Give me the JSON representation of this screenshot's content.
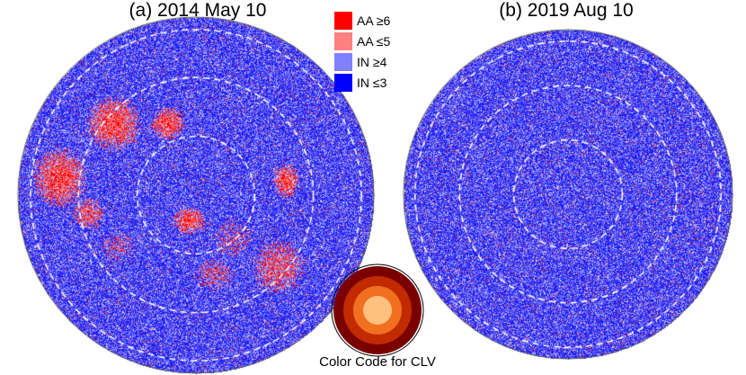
{
  "panels": [
    {
      "title": "(a) 2014 May 10",
      "activity": "high"
    },
    {
      "title": "(b) 2019 Aug 10",
      "activity": "low"
    }
  ],
  "legend": [
    {
      "label": "AA ≥6",
      "color": "#ff0000"
    },
    {
      "label": "AA ≤5",
      "color": "#ff8080"
    },
    {
      "label": "IN ≥4",
      "color": "#8080ff"
    },
    {
      "label": "IN ≤3",
      "color": "#0000ff"
    }
  ],
  "clv": {
    "caption": "Color Code for CLV",
    "ring_colors": [
      "#7a0000",
      "#c22a00",
      "#f07020",
      "#ffc080"
    ]
  },
  "colors": {
    "disk_blue": "#2d2df0",
    "active_red": "#ee2020",
    "ring_dash": "#ffffff"
  }
}
